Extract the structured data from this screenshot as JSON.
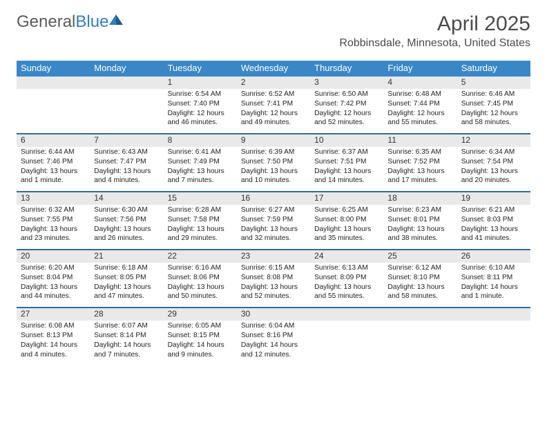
{
  "logo": {
    "text_a": "General",
    "text_b": "Blue"
  },
  "title": "April 2025",
  "location": "Robbinsdale, Minnesota, United States",
  "colors": {
    "header_bg": "#3a87c8",
    "header_text": "#ffffff",
    "daynum_bg": "#e9e9e9",
    "separator": "#2f6aa0",
    "body_bg": "#ffffff",
    "text": "#222222"
  },
  "layout": {
    "columns": 7,
    "column_headers_fontsize": 13,
    "daynum_fontsize": 12,
    "body_fontsize": 10.2
  },
  "day_headers": [
    "Sunday",
    "Monday",
    "Tuesday",
    "Wednesday",
    "Thursday",
    "Friday",
    "Saturday"
  ],
  "weeks": [
    [
      {
        "day": "",
        "sunrise": "",
        "sunset": "",
        "daylight": ""
      },
      {
        "day": "",
        "sunrise": "",
        "sunset": "",
        "daylight": ""
      },
      {
        "day": "1",
        "sunrise": "Sunrise: 6:54 AM",
        "sunset": "Sunset: 7:40 PM",
        "daylight": "Daylight: 12 hours and 46 minutes."
      },
      {
        "day": "2",
        "sunrise": "Sunrise: 6:52 AM",
        "sunset": "Sunset: 7:41 PM",
        "daylight": "Daylight: 12 hours and 49 minutes."
      },
      {
        "day": "3",
        "sunrise": "Sunrise: 6:50 AM",
        "sunset": "Sunset: 7:42 PM",
        "daylight": "Daylight: 12 hours and 52 minutes."
      },
      {
        "day": "4",
        "sunrise": "Sunrise: 6:48 AM",
        "sunset": "Sunset: 7:44 PM",
        "daylight": "Daylight: 12 hours and 55 minutes."
      },
      {
        "day": "5",
        "sunrise": "Sunrise: 6:46 AM",
        "sunset": "Sunset: 7:45 PM",
        "daylight": "Daylight: 12 hours and 58 minutes."
      }
    ],
    [
      {
        "day": "6",
        "sunrise": "Sunrise: 6:44 AM",
        "sunset": "Sunset: 7:46 PM",
        "daylight": "Daylight: 13 hours and 1 minute."
      },
      {
        "day": "7",
        "sunrise": "Sunrise: 6:43 AM",
        "sunset": "Sunset: 7:47 PM",
        "daylight": "Daylight: 13 hours and 4 minutes."
      },
      {
        "day": "8",
        "sunrise": "Sunrise: 6:41 AM",
        "sunset": "Sunset: 7:49 PM",
        "daylight": "Daylight: 13 hours and 7 minutes."
      },
      {
        "day": "9",
        "sunrise": "Sunrise: 6:39 AM",
        "sunset": "Sunset: 7:50 PM",
        "daylight": "Daylight: 13 hours and 10 minutes."
      },
      {
        "day": "10",
        "sunrise": "Sunrise: 6:37 AM",
        "sunset": "Sunset: 7:51 PM",
        "daylight": "Daylight: 13 hours and 14 minutes."
      },
      {
        "day": "11",
        "sunrise": "Sunrise: 6:35 AM",
        "sunset": "Sunset: 7:52 PM",
        "daylight": "Daylight: 13 hours and 17 minutes."
      },
      {
        "day": "12",
        "sunrise": "Sunrise: 6:34 AM",
        "sunset": "Sunset: 7:54 PM",
        "daylight": "Daylight: 13 hours and 20 minutes."
      }
    ],
    [
      {
        "day": "13",
        "sunrise": "Sunrise: 6:32 AM",
        "sunset": "Sunset: 7:55 PM",
        "daylight": "Daylight: 13 hours and 23 minutes."
      },
      {
        "day": "14",
        "sunrise": "Sunrise: 6:30 AM",
        "sunset": "Sunset: 7:56 PM",
        "daylight": "Daylight: 13 hours and 26 minutes."
      },
      {
        "day": "15",
        "sunrise": "Sunrise: 6:28 AM",
        "sunset": "Sunset: 7:58 PM",
        "daylight": "Daylight: 13 hours and 29 minutes."
      },
      {
        "day": "16",
        "sunrise": "Sunrise: 6:27 AM",
        "sunset": "Sunset: 7:59 PM",
        "daylight": "Daylight: 13 hours and 32 minutes."
      },
      {
        "day": "17",
        "sunrise": "Sunrise: 6:25 AM",
        "sunset": "Sunset: 8:00 PM",
        "daylight": "Daylight: 13 hours and 35 minutes."
      },
      {
        "day": "18",
        "sunrise": "Sunrise: 6:23 AM",
        "sunset": "Sunset: 8:01 PM",
        "daylight": "Daylight: 13 hours and 38 minutes."
      },
      {
        "day": "19",
        "sunrise": "Sunrise: 6:21 AM",
        "sunset": "Sunset: 8:03 PM",
        "daylight": "Daylight: 13 hours and 41 minutes."
      }
    ],
    [
      {
        "day": "20",
        "sunrise": "Sunrise: 6:20 AM",
        "sunset": "Sunset: 8:04 PM",
        "daylight": "Daylight: 13 hours and 44 minutes."
      },
      {
        "day": "21",
        "sunrise": "Sunrise: 6:18 AM",
        "sunset": "Sunset: 8:05 PM",
        "daylight": "Daylight: 13 hours and 47 minutes."
      },
      {
        "day": "22",
        "sunrise": "Sunrise: 6:16 AM",
        "sunset": "Sunset: 8:06 PM",
        "daylight": "Daylight: 13 hours and 50 minutes."
      },
      {
        "day": "23",
        "sunrise": "Sunrise: 6:15 AM",
        "sunset": "Sunset: 8:08 PM",
        "daylight": "Daylight: 13 hours and 52 minutes."
      },
      {
        "day": "24",
        "sunrise": "Sunrise: 6:13 AM",
        "sunset": "Sunset: 8:09 PM",
        "daylight": "Daylight: 13 hours and 55 minutes."
      },
      {
        "day": "25",
        "sunrise": "Sunrise: 6:12 AM",
        "sunset": "Sunset: 8:10 PM",
        "daylight": "Daylight: 13 hours and 58 minutes."
      },
      {
        "day": "26",
        "sunrise": "Sunrise: 6:10 AM",
        "sunset": "Sunset: 8:11 PM",
        "daylight": "Daylight: 14 hours and 1 minute."
      }
    ],
    [
      {
        "day": "27",
        "sunrise": "Sunrise: 6:08 AM",
        "sunset": "Sunset: 8:13 PM",
        "daylight": "Daylight: 14 hours and 4 minutes."
      },
      {
        "day": "28",
        "sunrise": "Sunrise: 6:07 AM",
        "sunset": "Sunset: 8:14 PM",
        "daylight": "Daylight: 14 hours and 7 minutes."
      },
      {
        "day": "29",
        "sunrise": "Sunrise: 6:05 AM",
        "sunset": "Sunset: 8:15 PM",
        "daylight": "Daylight: 14 hours and 9 minutes."
      },
      {
        "day": "30",
        "sunrise": "Sunrise: 6:04 AM",
        "sunset": "Sunset: 8:16 PM",
        "daylight": "Daylight: 14 hours and 12 minutes."
      },
      {
        "day": "",
        "sunrise": "",
        "sunset": "",
        "daylight": ""
      },
      {
        "day": "",
        "sunrise": "",
        "sunset": "",
        "daylight": ""
      },
      {
        "day": "",
        "sunrise": "",
        "sunset": "",
        "daylight": ""
      }
    ]
  ]
}
